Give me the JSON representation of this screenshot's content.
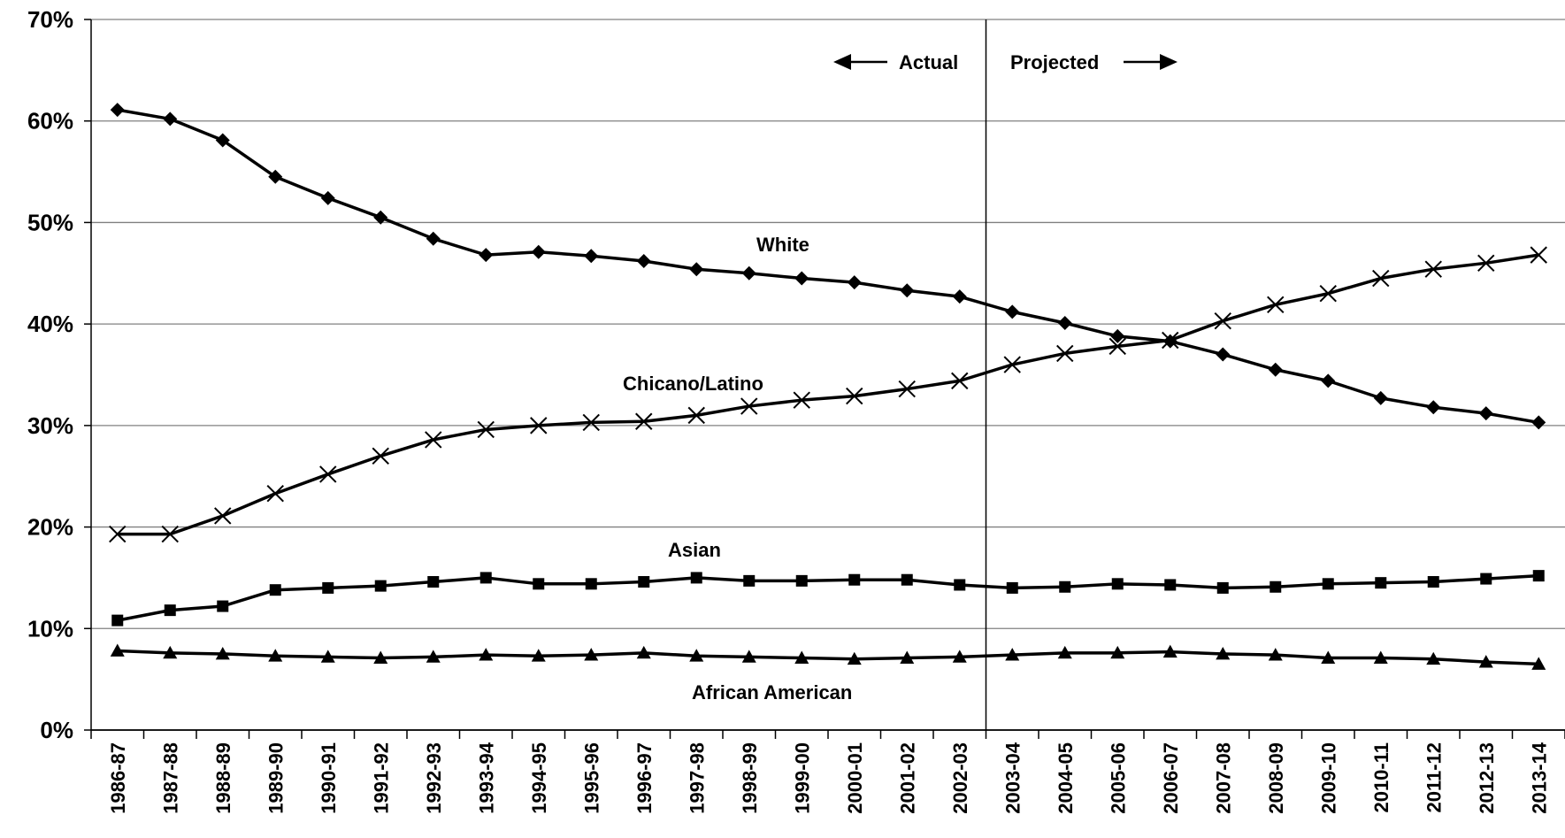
{
  "chart_data": {
    "type": "line",
    "title": "",
    "xlabel": "",
    "ylabel": "",
    "ylim": [
      0,
      70
    ],
    "yticks": [
      "0%",
      "10%",
      "20%",
      "30%",
      "40%",
      "50%",
      "60%",
      "70%"
    ],
    "grid": true,
    "categories": [
      "1986-87",
      "1987-88",
      "1988-89",
      "1989-90",
      "1990-91",
      "1991-92",
      "1992-93",
      "1993-94",
      "1994-95",
      "1995-96",
      "1996-97",
      "1997-98",
      "1998-99",
      "1999-00",
      "2000-01",
      "2001-02",
      "2002-03",
      "2003-04",
      "2004-05",
      "2005-06",
      "2006-07",
      "2007-08",
      "2008-09",
      "2009-10",
      "2010-11",
      "2011-12",
      "2012-13",
      "2013-14"
    ],
    "series": [
      {
        "name": "White",
        "marker": "diamond",
        "values": [
          61.1,
          60.2,
          58.1,
          54.5,
          52.4,
          50.5,
          48.4,
          46.8,
          47.1,
          46.7,
          46.2,
          45.4,
          45.0,
          44.5,
          44.1,
          43.3,
          42.7,
          41.2,
          40.1,
          38.8,
          38.3,
          37.0,
          35.5,
          34.4,
          32.7,
          31.8,
          31.2,
          30.3
        ]
      },
      {
        "name": "Chicano/Latino",
        "marker": "x",
        "values": [
          19.3,
          19.3,
          21.1,
          23.3,
          25.2,
          27.0,
          28.6,
          29.6,
          30.0,
          30.3,
          30.4,
          31.0,
          31.9,
          32.5,
          32.9,
          33.6,
          34.4,
          36.0,
          37.1,
          37.8,
          38.4,
          40.3,
          41.9,
          43.0,
          44.5,
          45.4,
          46.0,
          46.8
        ]
      },
      {
        "name": "Asian",
        "marker": "square",
        "values": [
          10.8,
          11.8,
          12.2,
          13.8,
          14.0,
          14.2,
          14.6,
          15.0,
          14.4,
          14.4,
          14.6,
          15.0,
          14.7,
          14.7,
          14.8,
          14.8,
          14.3,
          14.0,
          14.1,
          14.4,
          14.3,
          14.0,
          14.1,
          14.4,
          14.5,
          14.6,
          14.9,
          15.2
        ]
      },
      {
        "name": "African American",
        "marker": "triangle",
        "values": [
          7.8,
          7.6,
          7.5,
          7.3,
          7.2,
          7.1,
          7.2,
          7.4,
          7.3,
          7.4,
          7.6,
          7.3,
          7.2,
          7.1,
          7.0,
          7.1,
          7.2,
          7.4,
          7.6,
          7.6,
          7.7,
          7.5,
          7.4,
          7.1,
          7.1,
          7.0,
          6.7,
          6.5
        ]
      }
    ],
    "annotations": {
      "actual": "Actual",
      "projected": "Projected"
    },
    "divider_after_category": "2002-03"
  }
}
